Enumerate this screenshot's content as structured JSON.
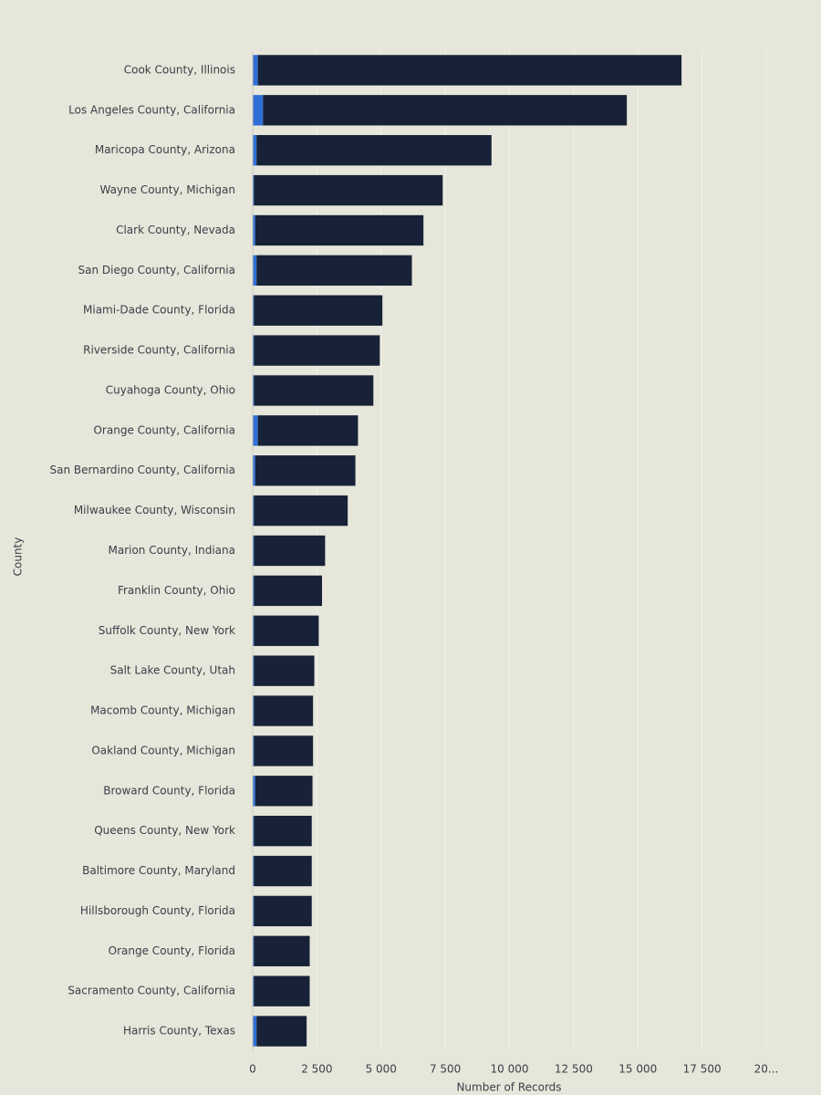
{
  "chart_data": {
    "type": "stacked-barh",
    "categories": [
      "Cook County, Illinois",
      "Los Angeles County, California",
      "Maricopa County, Arizona",
      "Wayne County, Michigan",
      "Clark County, Nevada",
      "San Diego County, California",
      "Miami-Dade County, Florida",
      "Riverside County, California",
      "Cuyahoga County, Ohio",
      "Orange County, California",
      "San Bernardino County, California",
      "Milwaukee County, Wisconsin",
      "Marion County, Indiana",
      "Franklin County, Ohio",
      "Suffolk County, New York",
      "Salt Lake County, Utah",
      "Macomb County, Michigan",
      "Oakland County, Michigan",
      "Broward County, Florida",
      "Queens County, New York",
      "Baltimore County, Maryland",
      "Hillsborough County, Florida",
      "Orange County, Florida",
      "Sacramento County, California",
      "Harris County, Texas"
    ],
    "series": [
      {
        "color": "#2f6fd6",
        "values": [
          200,
          400,
          150,
          50,
          100,
          150,
          50,
          50,
          50,
          200,
          100,
          50,
          50,
          50,
          50,
          50,
          50,
          50,
          100,
          50,
          50,
          50,
          50,
          50,
          150
        ]
      },
      {
        "color": "#172238",
        "values": [
          16500,
          14170,
          9150,
          7350,
          6550,
          6050,
          5000,
          4900,
          4650,
          3900,
          3900,
          3650,
          2770,
          2650,
          2520,
          2350,
          2300,
          2300,
          2230,
          2250,
          2250,
          2250,
          2170,
          2170,
          1950
        ]
      }
    ],
    "xlim": [
      0,
      20000
    ],
    "xticks": [
      0,
      {
        "value": 2500,
        "label": "2 500"
      },
      {
        "value": 5000,
        "label": "5 000"
      },
      {
        "value": 7500,
        "label": "7 500"
      },
      {
        "value": 10000,
        "label": "10 000"
      },
      {
        "value": 12500,
        "label": "12 500"
      },
      {
        "value": 15000,
        "label": "15 000"
      },
      {
        "value": 17500,
        "label": "17 500"
      },
      {
        "value": 20000,
        "label": "20..."
      }
    ],
    "ylabel": "County",
    "xlabel": "Number of Records",
    "grid": true
  }
}
